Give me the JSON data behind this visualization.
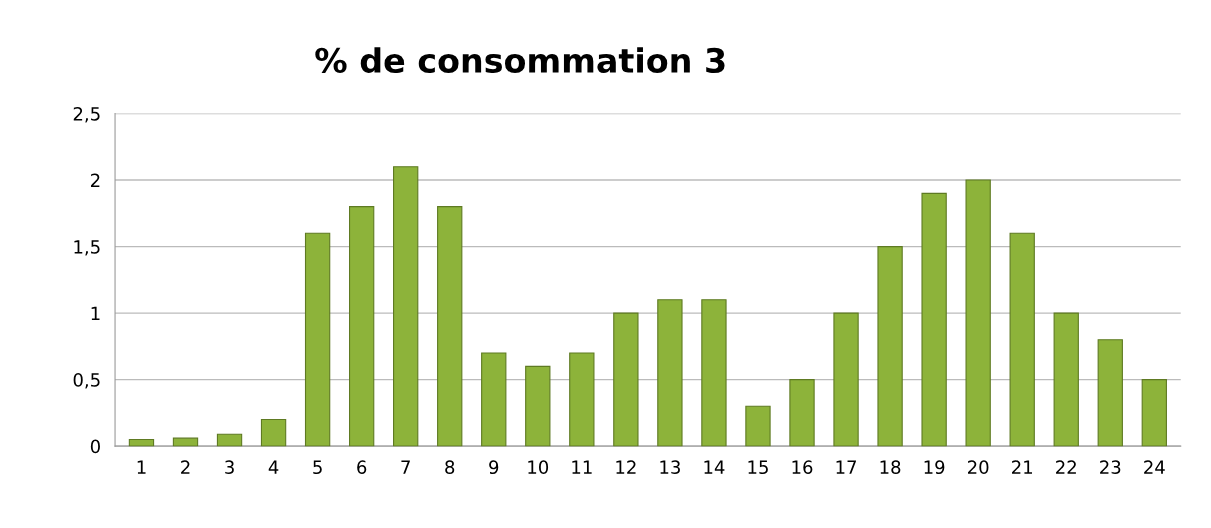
{
  "chart_data": {
    "type": "bar",
    "title": "% de consommation 3",
    "categories": [
      "1",
      "2",
      "3",
      "4",
      "5",
      "6",
      "7",
      "8",
      "9",
      "10",
      "11",
      "12",
      "13",
      "14",
      "15",
      "16",
      "17",
      "18",
      "19",
      "20",
      "21",
      "22",
      "23",
      "24"
    ],
    "values": [
      0.05,
      0.06,
      0.09,
      0.2,
      1.6,
      1.8,
      2.1,
      1.8,
      0.7,
      0.6,
      0.7,
      1,
      1.1,
      1.1,
      0.3,
      0.5,
      1,
      1.5,
      1.9,
      2,
      1.6,
      1,
      0.8,
      0.5
    ],
    "color": "#8db33a",
    "ylim": [
      0,
      2.5
    ],
    "yticks": [
      {
        "value": 0,
        "label": "0"
      },
      {
        "value": 0.5,
        "label": "0,5"
      },
      {
        "value": 1,
        "label": "1"
      },
      {
        "value": 1.5,
        "label": "1,5"
      },
      {
        "value": 2,
        "label": "2"
      },
      {
        "value": 2.5,
        "label": "2,5"
      }
    ],
    "grid": "y"
  }
}
